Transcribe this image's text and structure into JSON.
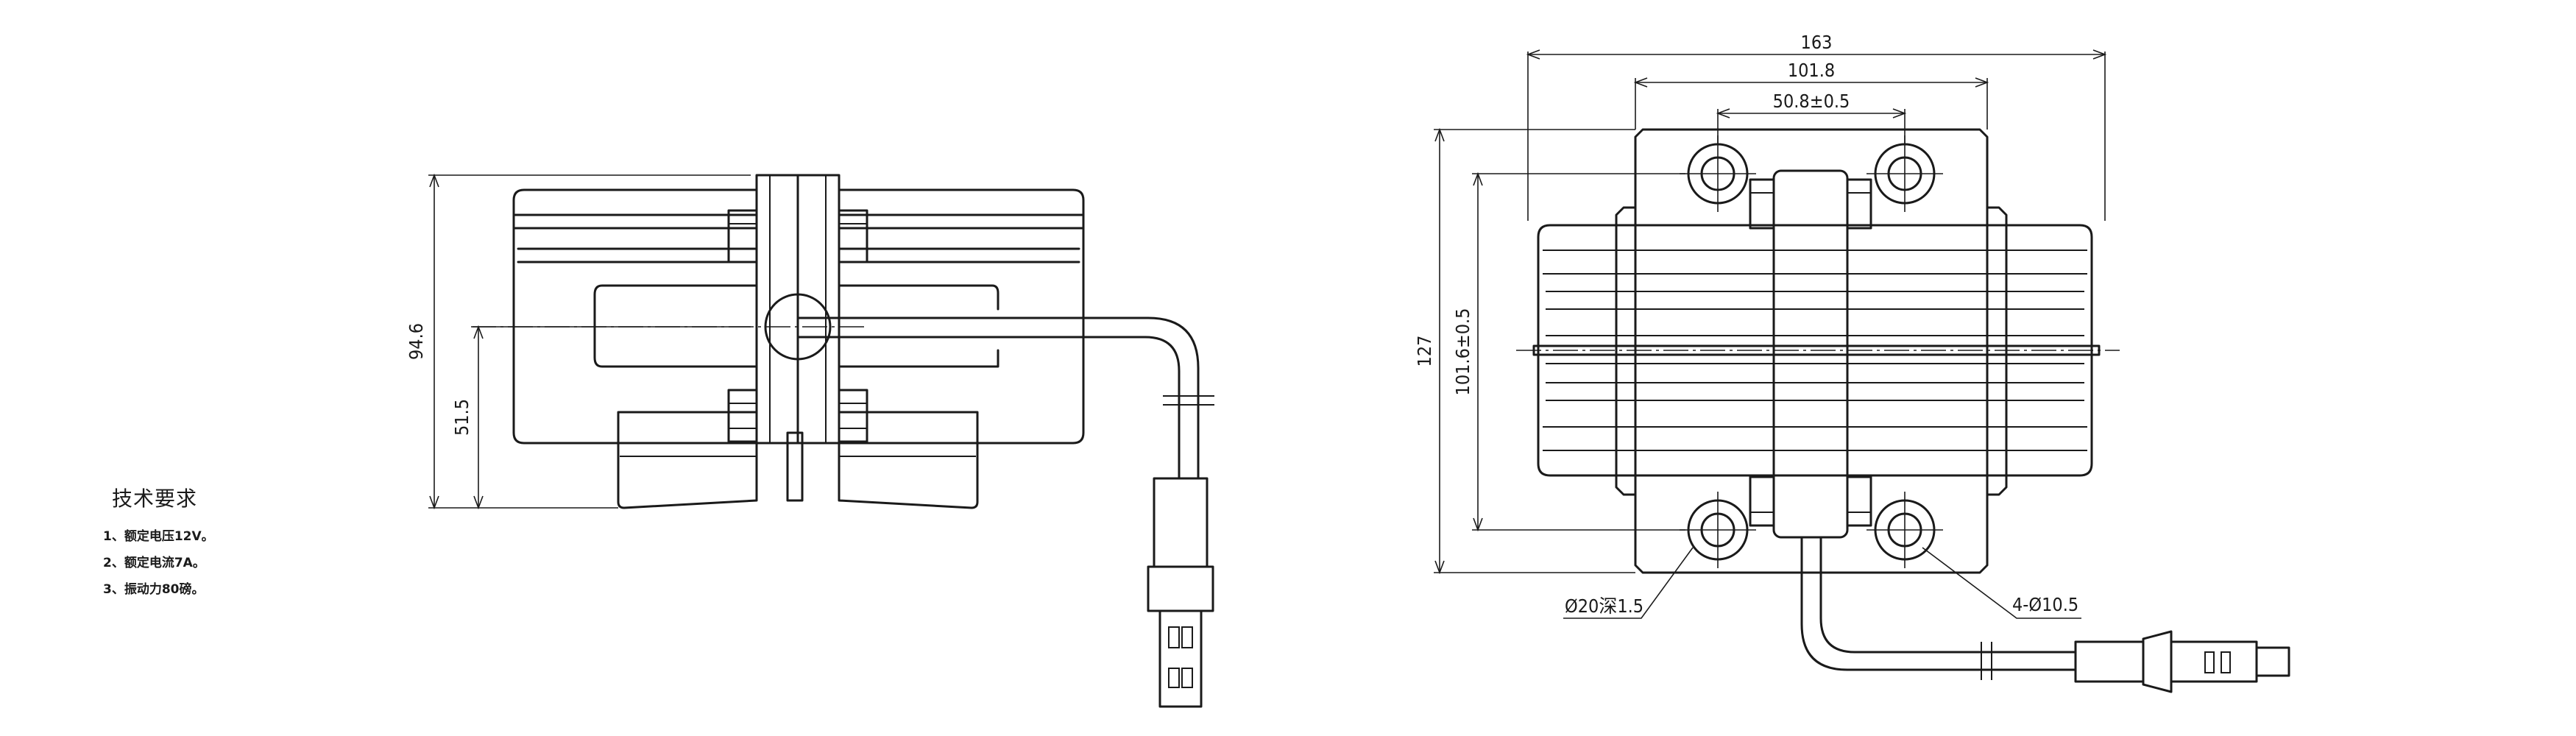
{
  "side_view": {
    "overall_height": "94.6",
    "axis_height": "51.5"
  },
  "top_view": {
    "overall_width": "163",
    "bolt_spacing": "101.8",
    "center_spacing": "50.8±0.5",
    "overall_depth": "127",
    "inner_depth": "101.6±0.5",
    "counterbore_callout": "Ø20深1.5",
    "holes_callout": "4-Ø10.5"
  },
  "notes": {
    "title": "技术要求",
    "items": [
      "1、额定电压12V。",
      "2、额定电流7A。",
      "3、振动力80磅。"
    ]
  }
}
